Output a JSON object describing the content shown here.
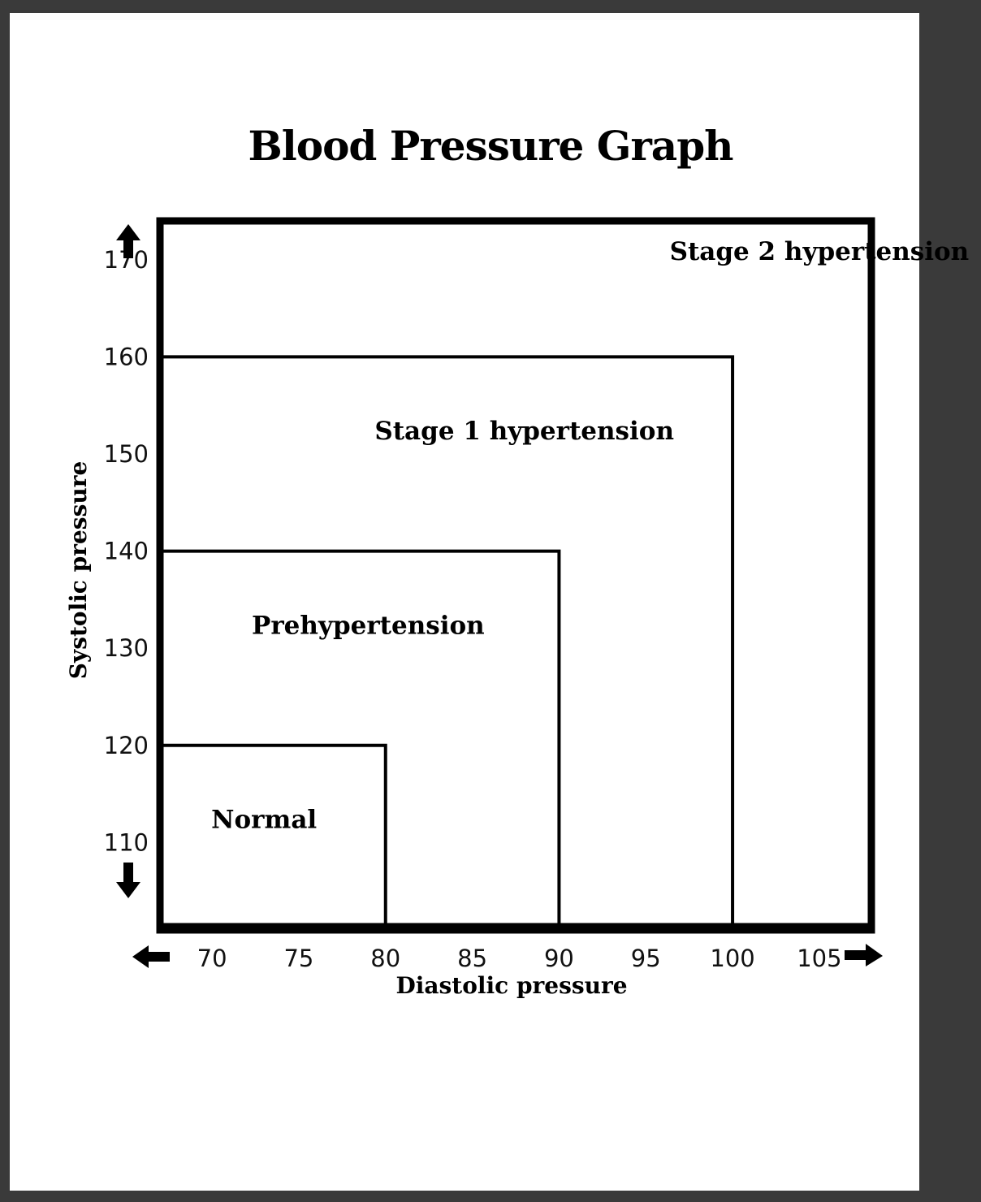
{
  "chart_data": {
    "type": "area",
    "title": "Blood Pressure Graph",
    "xlabel": "Diastolic pressure",
    "ylabel": "Systolic pressure",
    "xlim": [
      67,
      108
    ],
    "ylim": [
      101,
      174
    ],
    "x_ticks": [
      70,
      75,
      80,
      85,
      90,
      95,
      100,
      105
    ],
    "y_ticks": [
      110,
      120,
      130,
      140,
      150,
      160,
      170
    ],
    "grid": false,
    "regions": [
      {
        "name": "Stage 2 hypertension",
        "x_max": 108,
        "y_max": 174
      },
      {
        "name": "Stage 1 hypertension",
        "x_max": 100,
        "y_max": 160
      },
      {
        "name": "Prehypertension",
        "x_max": 90,
        "y_max": 140
      },
      {
        "name": "Normal",
        "x_max": 80,
        "y_max": 120
      }
    ]
  }
}
